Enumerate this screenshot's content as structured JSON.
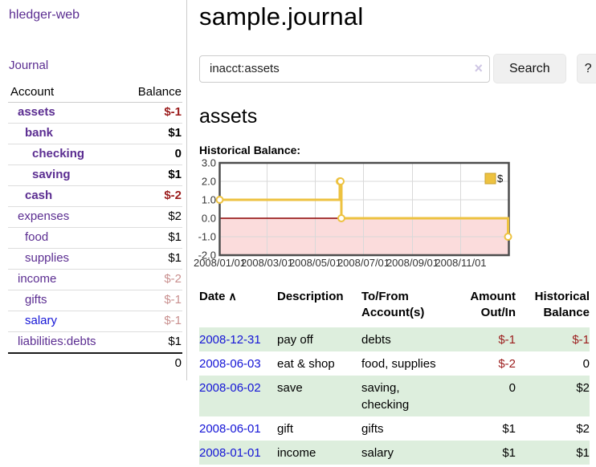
{
  "colors": {
    "link_purple": "#5b2d91",
    "link_blue": "#1414d6",
    "negative_strong": "#9b1c1c",
    "negative_soft": "#c9908f",
    "row_shade_green": "#ddeedd"
  },
  "app": {
    "brand": "hledger-web",
    "nav_journal": "Journal"
  },
  "sidebar": {
    "columns": {
      "account": "Account",
      "balance": "Balance"
    },
    "accounts": [
      {
        "name": "assets",
        "indent": 1,
        "balance": "$-1",
        "bold": true,
        "unvisited": false
      },
      {
        "name": "bank",
        "indent": 2,
        "balance": "$1",
        "bold": true,
        "unvisited": false
      },
      {
        "name": "checking",
        "indent": 3,
        "balance": "0",
        "bold": true,
        "unvisited": false
      },
      {
        "name": "saving",
        "indent": 3,
        "balance": "$1",
        "bold": true,
        "unvisited": false
      },
      {
        "name": "cash",
        "indent": 2,
        "balance": "$-2",
        "bold": true,
        "unvisited": false
      },
      {
        "name": "expenses",
        "indent": 1,
        "balance": "$2",
        "bold": false,
        "unvisited": false
      },
      {
        "name": "food",
        "indent": 2,
        "balance": "$1",
        "bold": false,
        "unvisited": false
      },
      {
        "name": "supplies",
        "indent": 2,
        "balance": "$1",
        "bold": false,
        "unvisited": false
      },
      {
        "name": "income",
        "indent": 1,
        "balance": "$-2",
        "bold": false,
        "unvisited": false
      },
      {
        "name": "gifts",
        "indent": 2,
        "balance": "$-1",
        "bold": false,
        "unvisited": false
      },
      {
        "name": "salary",
        "indent": 2,
        "balance": "$-1",
        "bold": false,
        "unvisited": true
      },
      {
        "name": "liabilities:debts",
        "indent": 1,
        "balance": "$1",
        "bold": false,
        "unvisited": false
      }
    ],
    "total": "0"
  },
  "header": {
    "title": "sample.journal"
  },
  "search": {
    "value": "inacct:assets",
    "button": "Search",
    "help_button": "?"
  },
  "icons": {
    "clear_search": "×",
    "sort_ascending": "∧"
  },
  "account_page": {
    "title": "assets"
  },
  "chart_data": {
    "type": "line",
    "step": true,
    "title": "Historical Balance:",
    "ylim": [
      -2,
      3
    ],
    "yticks": [
      3,
      2,
      1,
      0,
      -1,
      -2
    ],
    "xticks": [
      {
        "label": "2008/01/01",
        "t": 0.0
      },
      {
        "label": "2008/03/01",
        "t": 0.1639
      },
      {
        "label": "2008/05/01",
        "t": 0.3306
      },
      {
        "label": "2008/07/01",
        "t": 0.4973
      },
      {
        "label": "2008/09/01",
        "t": 0.6667
      },
      {
        "label": "2008/11/01",
        "t": 0.8333
      }
    ],
    "series": [
      {
        "name": "$",
        "color": "#edc240",
        "points": [
          {
            "date": "2008-01-01",
            "t": 0.0,
            "value": 1
          },
          {
            "date": "2008-06-01",
            "t": 0.4153,
            "value": 2
          },
          {
            "date": "2008-06-02",
            "t": 0.418,
            "value": 2
          },
          {
            "date": "2008-06-03",
            "t": 0.4208,
            "value": 0
          },
          {
            "date": "2008-12-31",
            "t": 0.9973,
            "value": -1
          }
        ]
      }
    ],
    "negative_region_color": "#fbdcdc",
    "zero_line_color": "#8b0000",
    "grid": true,
    "legend": {
      "label": "$",
      "swatch_color": "#edc240",
      "position": "top-right"
    }
  },
  "register": {
    "columns": {
      "date": "Date",
      "description": "Description",
      "account_line1": "To/From",
      "account_line2": "Account(s)",
      "amount_line1": "Amount",
      "amount_line2": "Out/In",
      "balance_line1": "Historical",
      "balance_line2": "Balance"
    },
    "rows": [
      {
        "date": "2008-12-31",
        "description": "pay off",
        "accounts": "debts",
        "amount": "$-1",
        "balance": "$-1"
      },
      {
        "date": "2008-06-03",
        "description": "eat & shop",
        "accounts": "food, supplies",
        "amount": "$-2",
        "balance": "0"
      },
      {
        "date": "2008-06-02",
        "description": "save",
        "accounts": "saving, checking",
        "amount": "0",
        "balance": "$2"
      },
      {
        "date": "2008-06-01",
        "description": "gift",
        "accounts": "gifts",
        "amount": "$1",
        "balance": "$2"
      },
      {
        "date": "2008-01-01",
        "description": "income",
        "accounts": "salary",
        "amount": "$1",
        "balance": "$1"
      }
    ]
  }
}
